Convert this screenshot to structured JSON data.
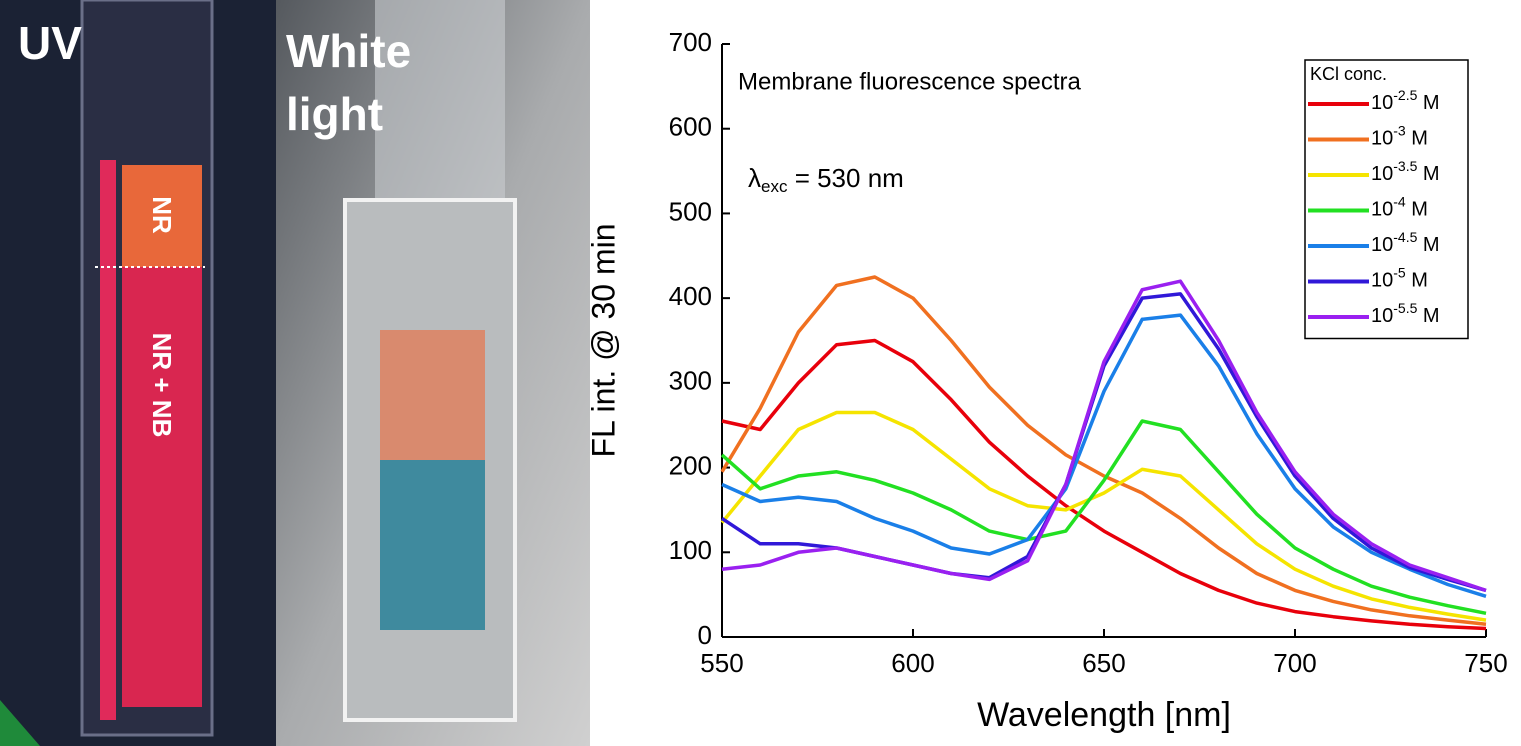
{
  "photo": {
    "uv_label": "UV",
    "white_light_label": [
      "White",
      "light"
    ],
    "regions": [
      "NR",
      "NR + NB"
    ]
  },
  "chart_data": {
    "type": "line",
    "annotations": [
      "Membrane fluorescence spectra",
      "λexc = 530 nm"
    ],
    "x_label": "Wavelength [nm]",
    "y_label": "FL int. @ 30 min",
    "legend_title": "KCl conc.",
    "legend": "top-right",
    "xlim": [
      550,
      750
    ],
    "xticks": [
      550,
      600,
      650,
      700,
      750
    ],
    "ylim": [
      0,
      700
    ],
    "yticks": [
      0,
      100,
      200,
      300,
      400,
      500,
      600,
      700
    ],
    "x": [
      550,
      560,
      570,
      580,
      590,
      600,
      610,
      620,
      630,
      640,
      650,
      660,
      670,
      680,
      690,
      700,
      710,
      720,
      730,
      740,
      750
    ],
    "series": [
      {
        "name": "10-2.5 M",
        "color": "#e8000b",
        "values": [
          255,
          245,
          300,
          345,
          350,
          325,
          280,
          230,
          190,
          155,
          125,
          100,
          75,
          55,
          40,
          30,
          24,
          19,
          15,
          12,
          10
        ]
      },
      {
        "name": "10-3 M",
        "color": "#f07020",
        "values": [
          195,
          270,
          360,
          415,
          425,
          400,
          350,
          295,
          250,
          215,
          190,
          170,
          140,
          105,
          75,
          55,
          42,
          32,
          25,
          20,
          15
        ]
      },
      {
        "name": "10-3.5 M",
        "color": "#f5e400",
        "values": [
          135,
          190,
          245,
          265,
          265,
          245,
          210,
          175,
          155,
          150,
          170,
          198,
          190,
          150,
          110,
          80,
          60,
          45,
          35,
          27,
          20
        ]
      },
      {
        "name": "10-4 M",
        "color": "#22e022",
        "values": [
          215,
          175,
          190,
          195,
          185,
          170,
          150,
          125,
          115,
          125,
          185,
          255,
          245,
          195,
          145,
          105,
          80,
          60,
          47,
          37,
          28
        ]
      },
      {
        "name": "10-4.5 M",
        "color": "#1a7fe8",
        "values": [
          180,
          160,
          165,
          160,
          140,
          125,
          105,
          98,
          115,
          175,
          290,
          375,
          380,
          320,
          240,
          175,
          130,
          100,
          80,
          62,
          48
        ]
      },
      {
        "name": "10-5 M",
        "color": "#3018d8",
        "values": [
          140,
          110,
          110,
          105,
          95,
          85,
          75,
          70,
          95,
          180,
          320,
          400,
          405,
          340,
          260,
          190,
          140,
          105,
          82,
          68,
          55
        ]
      },
      {
        "name": "10-5.5 M",
        "color": "#9a20f0",
        "values": [
          80,
          85,
          100,
          105,
          95,
          85,
          75,
          68,
          90,
          180,
          325,
          410,
          420,
          350,
          265,
          195,
          145,
          110,
          85,
          70,
          55
        ]
      }
    ]
  }
}
